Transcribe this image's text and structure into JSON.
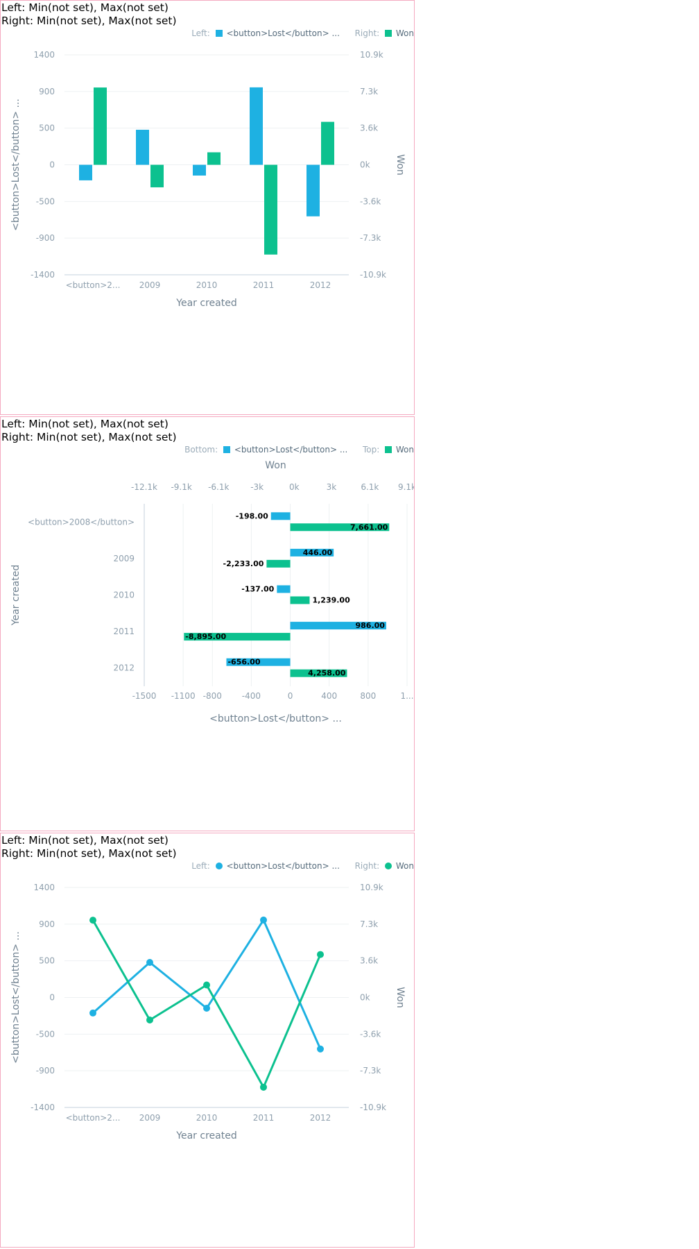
{
  "colors": {
    "lost": "#1eb1e2",
    "won": "#0cc18f",
    "grid": "#edf0f2",
    "axis": "#c5d2de",
    "border": "#f4a8bf"
  },
  "charts": [
    {
      "header": {
        "line1": "Left: Min(not set), Max(not set)",
        "line2": "Right: Min(not set), Max(not set)"
      },
      "legend": {
        "left_title": "Left:",
        "left_label": "<button>Lost</button> ...",
        "right_title": "Right:",
        "right_label": "Won"
      }
    },
    {
      "header": {
        "line1": "Left: Min(not set), Max(not set)",
        "line2": "Right: Min(not set), Max(not set)"
      },
      "legend": {
        "left_title": "Bottom:",
        "left_label": "<button>Lost</button> ...",
        "right_title": "Top:",
        "right_label": "Won"
      }
    },
    {
      "header": {
        "line1": "Left: Min(not set), Max(not set)",
        "line2": "Right: Min(not set), Max(not set)"
      },
      "legend": {
        "left_title": "Left:",
        "left_label": "<button>Lost</button> ...",
        "right_title": "Right:",
        "right_label": "Won"
      }
    }
  ],
  "chart_data": [
    {
      "type": "bar",
      "categories": [
        "<button>2...",
        "2009",
        "2010",
        "2011",
        "2012"
      ],
      "series": [
        {
          "name": "<button>Lost</button> ...",
          "axis": "left",
          "values": [
            -198,
            446,
            -137,
            986,
            -656
          ]
        },
        {
          "name": "Won",
          "axis": "right",
          "values": [
            7661,
            -2233,
            1239,
            -8895,
            4258
          ]
        }
      ],
      "xlabel": "Year created",
      "ylabel_left": "<button>Lost</button> ...",
      "ylabel_right": "Won",
      "ylim_left": [
        -1400,
        1400
      ],
      "ylim_right": [
        -10900,
        10900
      ],
      "left_ticks": [
        "1400",
        "900",
        "500",
        "0",
        "-500",
        "-900",
        "-1400"
      ],
      "right_ticks": [
        "10.9k",
        "7.3k",
        "3.6k",
        "0k",
        "-3.6k",
        "-7.3k",
        "-10.9k"
      ]
    },
    {
      "type": "bar",
      "orientation": "horizontal",
      "categories": [
        "<button>2008</button>",
        "2009",
        "2010",
        "2011",
        "2012"
      ],
      "series": [
        {
          "name": "<button>Lost</button> ...",
          "axis": "bottom",
          "values": [
            -198,
            446,
            -137,
            986,
            -656
          ],
          "labels": [
            "-198.00",
            "446.00",
            "-137.00",
            "986.00",
            "-656.00"
          ]
        },
        {
          "name": "Won",
          "axis": "top",
          "values": [
            7661,
            -2233,
            1239,
            -8895,
            4258
          ],
          "labels": [
            "7,661.00",
            "-2,233.00",
            "1,239.00",
            "-8,895.00",
            "4,258.00"
          ]
        }
      ],
      "xlabel_bottom": "<button>Lost</button> ...",
      "xlabel_top": "Won",
      "ylabel": "Year created",
      "xlim_bottom": [
        -1500,
        1200
      ],
      "xlim_top": [
        -12100,
        9100
      ],
      "bottom_ticks": [
        "-1500",
        "-1100",
        "-800",
        "-400",
        "0",
        "400",
        "800",
        "1..."
      ],
      "bottom_tick_values": [
        -1500,
        -1100,
        -800,
        -400,
        0,
        400,
        800,
        1200
      ],
      "top_ticks": [
        "-12.1k",
        "-9.1k",
        "-6.1k",
        "-3k",
        "0k",
        "3k",
        "6.1k",
        "9.1k"
      ],
      "top_tick_values": [
        -12100,
        -9100,
        -6100,
        -3000,
        0,
        3000,
        6100,
        9100
      ]
    },
    {
      "type": "line",
      "categories": [
        "<button>2...",
        "2009",
        "2010",
        "2011",
        "2012"
      ],
      "series": [
        {
          "name": "<button>Lost</button> ...",
          "axis": "left",
          "values": [
            -198,
            446,
            -137,
            986,
            -656
          ]
        },
        {
          "name": "Won",
          "axis": "right",
          "values": [
            7661,
            -2233,
            1239,
            -8895,
            4258
          ]
        }
      ],
      "xlabel": "Year created",
      "ylabel_left": "<button>Lost</button> ...",
      "ylabel_right": "Won",
      "ylim_left": [
        -1400,
        1400
      ],
      "ylim_right": [
        -10900,
        10900
      ],
      "left_ticks": [
        "1400",
        "900",
        "500",
        "0",
        "-500",
        "-900",
        "-1400"
      ],
      "right_ticks": [
        "10.9k",
        "7.3k",
        "3.6k",
        "0k",
        "-3.6k",
        "-7.3k",
        "-10.9k"
      ]
    }
  ]
}
